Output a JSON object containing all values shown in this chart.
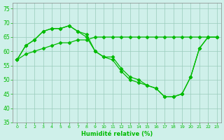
{
  "xlabel": "Humidité relative (%)",
  "bg_color": "#cff0ea",
  "grid_color": "#99ccbb",
  "line_color": "#00bb00",
  "xlim": [
    -0.5,
    23.5
  ],
  "ylim": [
    35,
    77
  ],
  "yticks": [
    35,
    40,
    45,
    50,
    55,
    60,
    65,
    70,
    75
  ],
  "xticks": [
    0,
    1,
    2,
    3,
    4,
    5,
    6,
    7,
    8,
    9,
    10,
    11,
    12,
    13,
    14,
    15,
    16,
    17,
    18,
    19,
    20,
    21,
    22,
    23
  ],
  "s1_x": [
    0,
    1,
    2,
    3,
    4,
    5,
    6,
    7,
    8,
    9,
    10,
    11,
    12,
    13,
    14,
    15,
    16,
    17,
    18,
    19,
    20,
    21,
    22
  ],
  "s1_y": [
    57,
    62,
    64,
    67,
    68,
    68,
    69,
    67,
    66,
    60,
    58,
    58,
    54,
    51,
    50,
    48,
    47,
    44,
    44,
    45,
    51,
    61,
    65
  ],
  "s2_x": [
    0,
    1,
    2,
    3,
    4,
    5,
    6,
    7,
    8,
    9,
    10,
    11,
    12,
    13,
    14,
    15,
    16,
    17,
    18,
    19,
    20,
    21,
    22,
    23
  ],
  "s2_y": [
    57,
    62,
    64,
    67,
    68,
    68,
    69,
    67,
    65,
    60,
    58,
    57,
    53,
    50,
    49,
    48,
    47,
    44,
    44,
    45,
    51,
    61,
    65,
    65
  ],
  "s3_x": [
    0,
    1,
    2,
    3,
    4,
    5,
    6,
    7,
    8,
    9,
    10,
    11,
    12,
    13,
    14,
    15,
    16,
    17,
    18,
    19,
    20,
    21,
    22,
    23
  ],
  "s3_y": [
    57,
    59,
    60,
    61,
    62,
    63,
    63,
    64,
    64,
    65,
    65,
    65,
    65,
    65,
    65,
    65,
    65,
    65,
    65,
    65,
    65,
    65,
    65,
    65
  ]
}
